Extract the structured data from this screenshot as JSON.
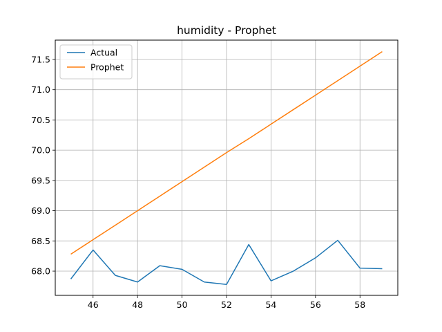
{
  "chart_data": {
    "type": "line",
    "title": "humidity - Prophet",
    "xlabel": "",
    "ylabel": "",
    "x": [
      45,
      46,
      47,
      48,
      49,
      50,
      51,
      52,
      53,
      54,
      55,
      56,
      57,
      58,
      59
    ],
    "xlim": [
      44.3,
      59.7
    ],
    "ylim": [
      67.6,
      71.82
    ],
    "xticks": [
      46,
      48,
      50,
      52,
      54,
      56,
      58
    ],
    "yticks": [
      68.0,
      68.5,
      69.0,
      69.5,
      70.0,
      70.5,
      71.0,
      71.5
    ],
    "grid": true,
    "legend_position": "top-left",
    "series": [
      {
        "name": "Actual",
        "color": "#1f77b4",
        "values": [
          67.87,
          68.35,
          67.93,
          67.82,
          68.09,
          68.03,
          67.82,
          67.78,
          68.44,
          67.84,
          68.0,
          68.22,
          68.51,
          68.05,
          68.04
        ]
      },
      {
        "name": "Prophet",
        "color": "#ff7f0e",
        "values": [
          68.28,
          68.52,
          68.76,
          69.0,
          69.24,
          69.48,
          69.72,
          69.96,
          70.19,
          70.43,
          70.67,
          70.91,
          71.15,
          71.39,
          71.63
        ]
      }
    ]
  }
}
